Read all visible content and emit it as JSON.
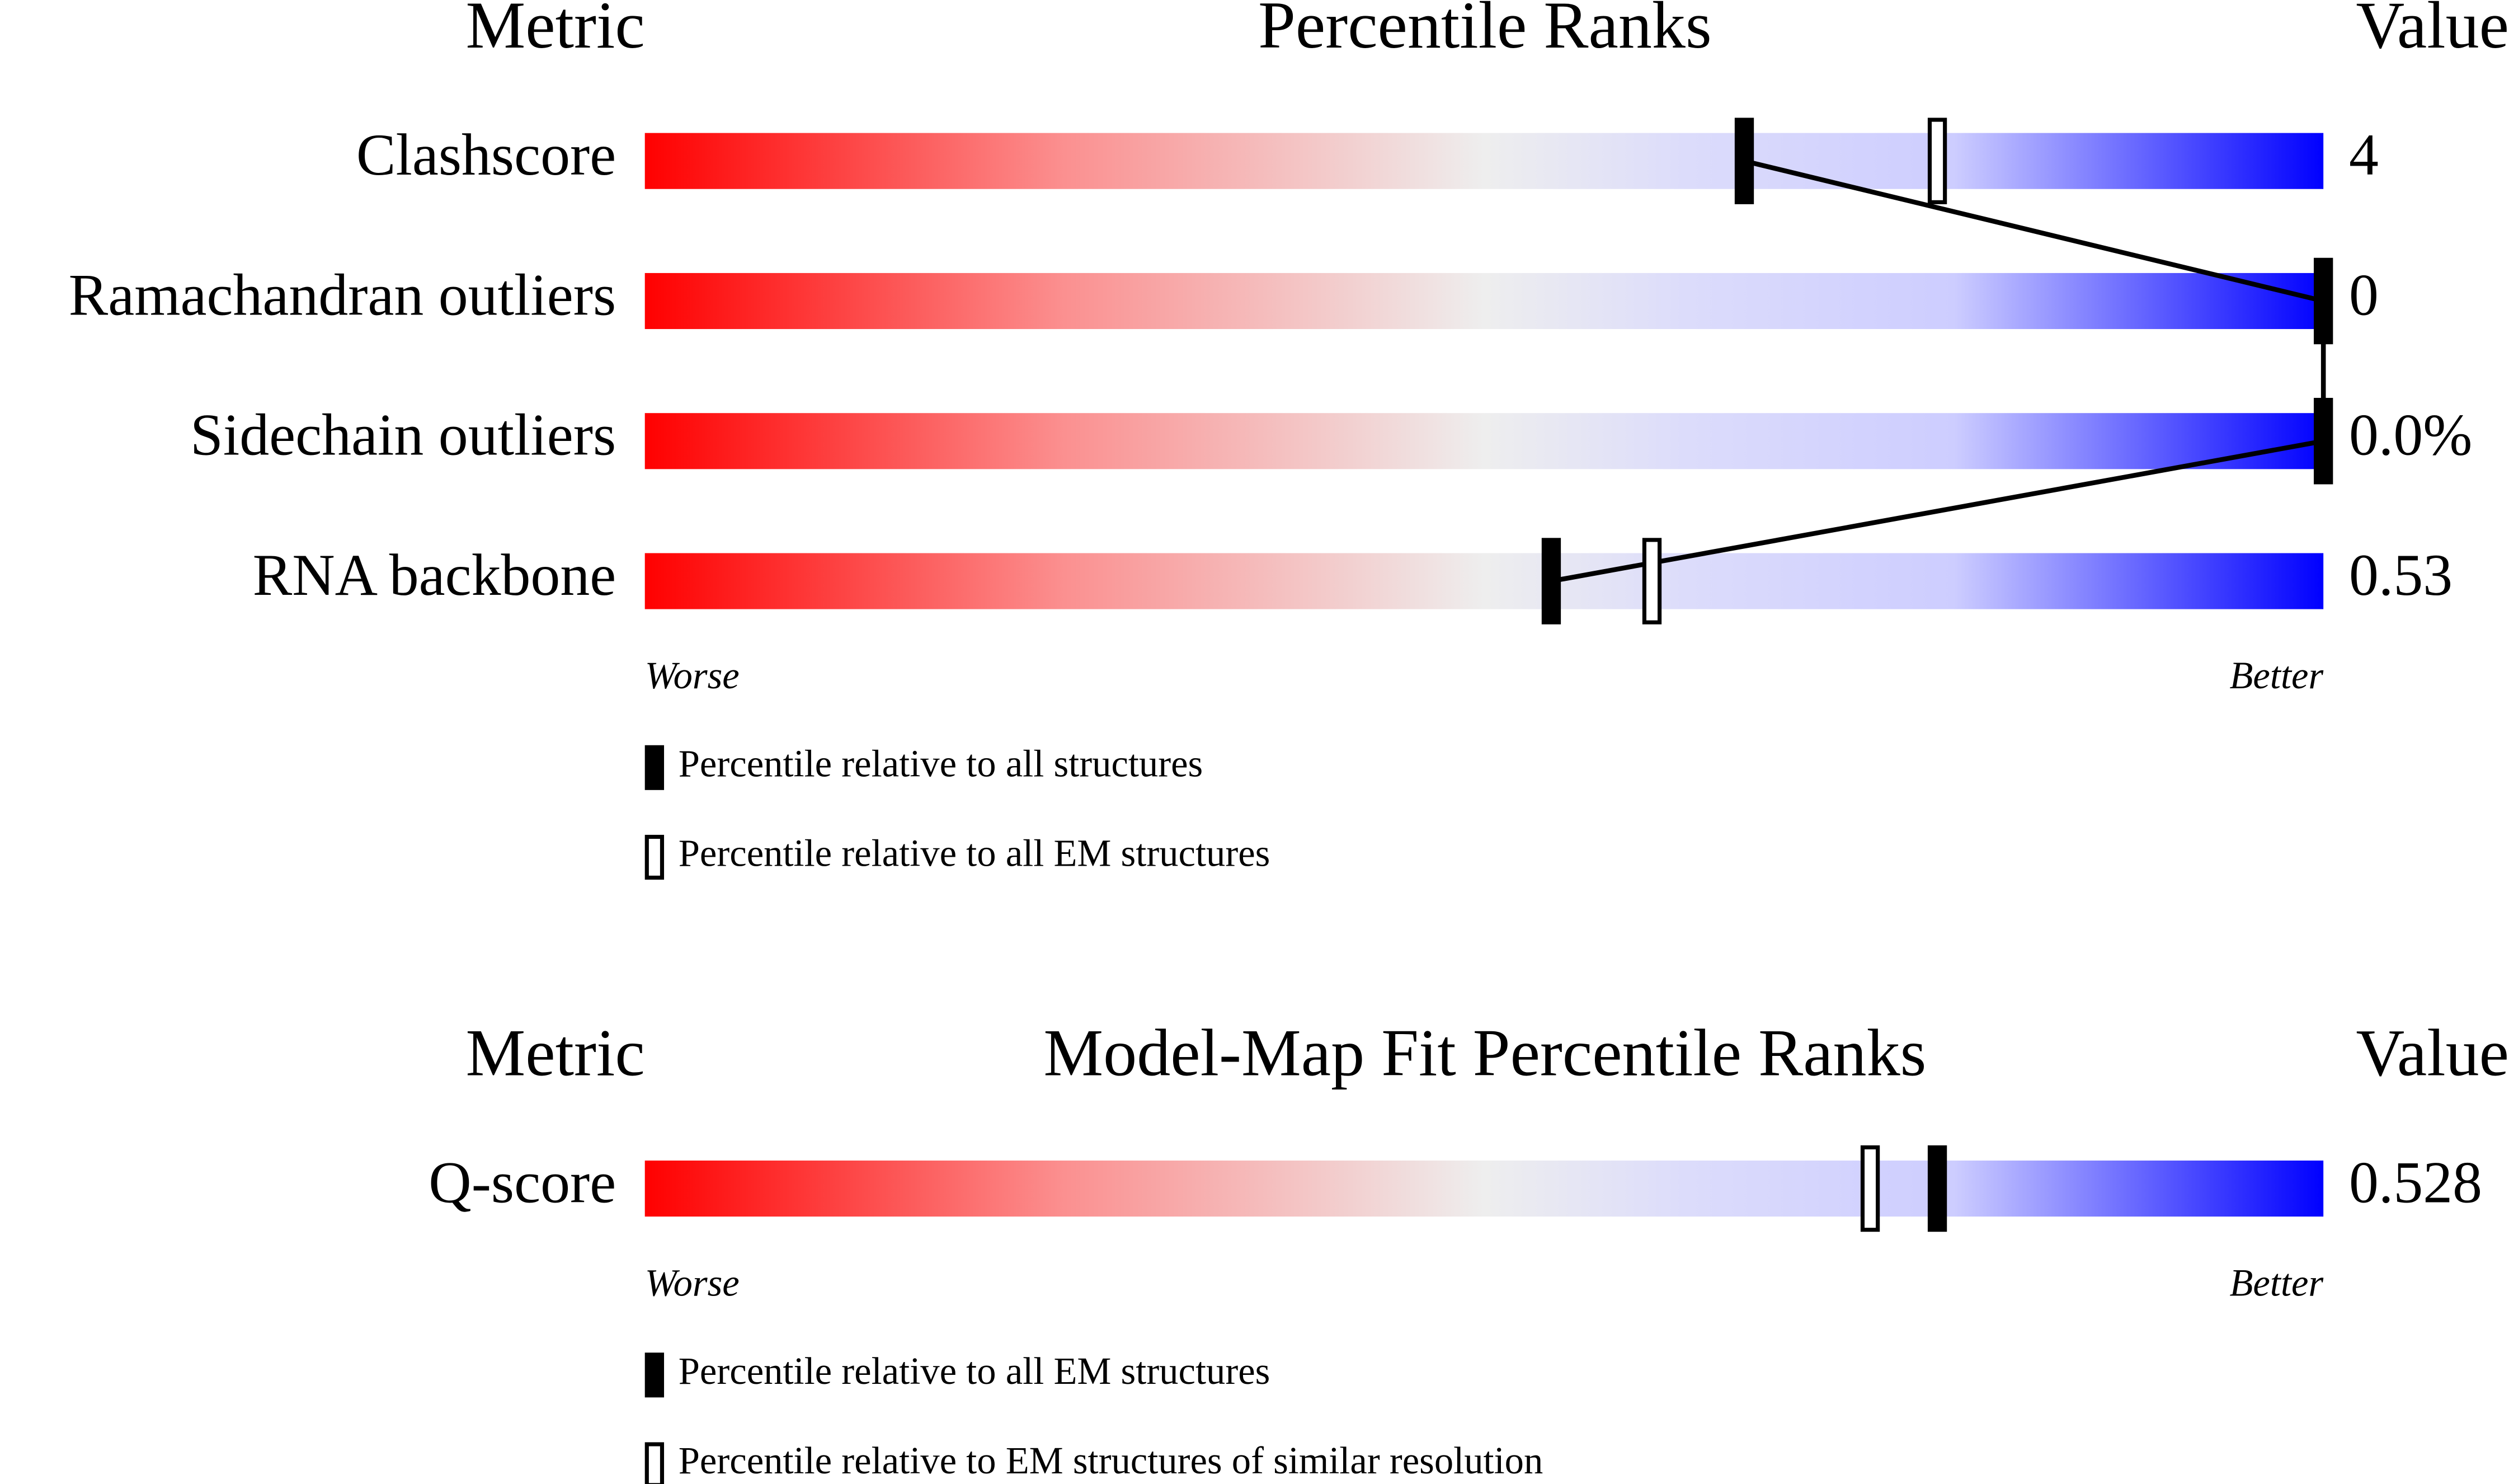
{
  "chart_data": [
    {
      "type": "percentile-slider",
      "metric_header": "Metric",
      "title": "Percentile Ranks",
      "value_header": "Value",
      "categories": [
        "Clashscore",
        "Ramachandran outliers",
        "Sidechain outliers",
        "RNA backbone"
      ],
      "metric_values": [
        "4",
        "0",
        "0.0%",
        "0.53"
      ],
      "xlim": [
        0,
        100
      ],
      "series": [
        {
          "name": "Percentile relative to all structures",
          "marker": "filled",
          "color": "#000000",
          "values": [
            65.5,
            100,
            100,
            54
          ]
        },
        {
          "name": "Percentile relative to all EM structures",
          "marker": "open",
          "color": "#000000",
          "values": [
            77,
            null,
            null,
            60
          ]
        }
      ],
      "connect": true,
      "worse_label": "Worse",
      "better_label": "Better"
    },
    {
      "type": "percentile-slider",
      "metric_header": "Metric",
      "title": "Model-Map Fit Percentile Ranks",
      "value_header": "Value",
      "categories": [
        "Q-score"
      ],
      "metric_values": [
        "0.528"
      ],
      "xlim": [
        0,
        100
      ],
      "series": [
        {
          "name": "Percentile relative to all EM structures",
          "marker": "filled",
          "color": "#000000",
          "values": [
            77
          ]
        },
        {
          "name": "Percentile relative to EM structures of similar resolution",
          "marker": "open",
          "color": "#000000",
          "values": [
            73
          ]
        }
      ],
      "connect": false,
      "worse_label": "Worse",
      "better_label": "Better"
    }
  ]
}
